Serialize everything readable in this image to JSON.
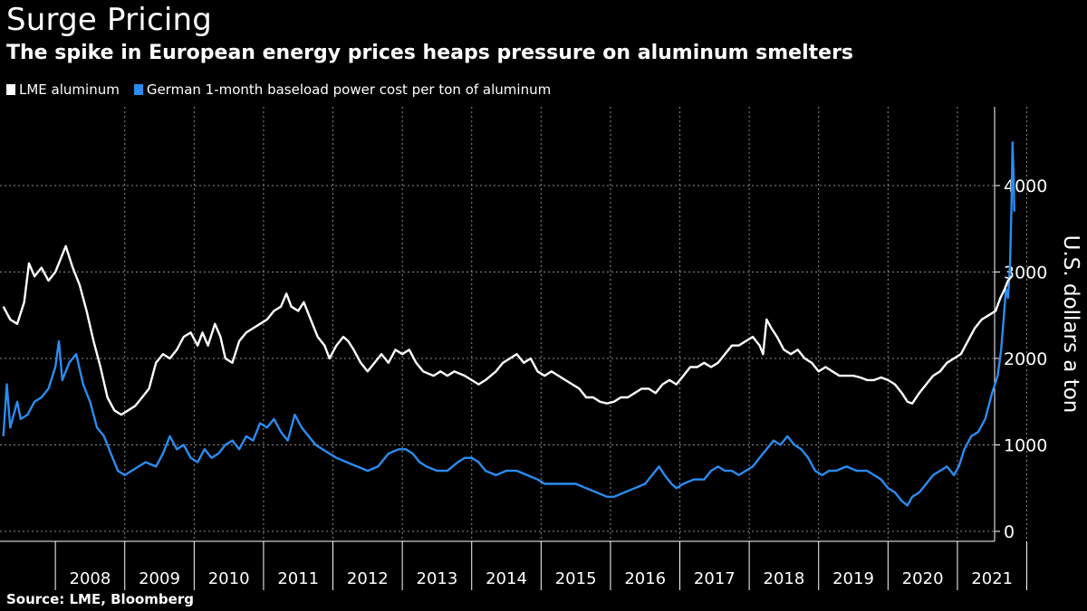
{
  "title": "Surge Pricing",
  "subtitle": "The spike in European energy prices heaps pressure on aluminum smelters",
  "source": "Source: LME, Bloomberg",
  "colors": {
    "aluminum": "#ffffff",
    "power": "#2a8cf0",
    "grid": "#8a8a8a",
    "background": "#000000"
  },
  "chart_data": {
    "type": "line",
    "ylabel": "U.S. dollars a ton",
    "ylim": [
      0,
      4600
    ],
    "yticks": [
      0,
      1000,
      2000,
      3000,
      4000
    ],
    "xlim": [
      2007.25,
      2021.95
    ],
    "years": [
      "2008",
      "2009",
      "2010",
      "2011",
      "2012",
      "2013",
      "2014",
      "2015",
      "2016",
      "2017",
      "2018",
      "2019",
      "2020",
      "2021"
    ],
    "grid": true,
    "legend_position": "top-left",
    "series": [
      {
        "name": "LME aluminum",
        "color": "#ffffff",
        "points": [
          [
            2007.25,
            2600
          ],
          [
            2007.35,
            2450
          ],
          [
            2007.45,
            2400
          ],
          [
            2007.55,
            2650
          ],
          [
            2007.62,
            3100
          ],
          [
            2007.7,
            2950
          ],
          [
            2007.8,
            3050
          ],
          [
            2007.9,
            2900
          ],
          [
            2008.0,
            3000
          ],
          [
            2008.1,
            3200
          ],
          [
            2008.15,
            3300
          ],
          [
            2008.25,
            3050
          ],
          [
            2008.35,
            2850
          ],
          [
            2008.45,
            2550
          ],
          [
            2008.55,
            2200
          ],
          [
            2008.65,
            1900
          ],
          [
            2008.75,
            1550
          ],
          [
            2008.85,
            1400
          ],
          [
            2008.95,
            1350
          ],
          [
            2009.05,
            1400
          ],
          [
            2009.15,
            1450
          ],
          [
            2009.25,
            1550
          ],
          [
            2009.35,
            1650
          ],
          [
            2009.45,
            1950
          ],
          [
            2009.55,
            2050
          ],
          [
            2009.65,
            2000
          ],
          [
            2009.75,
            2100
          ],
          [
            2009.85,
            2250
          ],
          [
            2009.95,
            2300
          ],
          [
            2010.05,
            2150
          ],
          [
            2010.12,
            2300
          ],
          [
            2010.2,
            2150
          ],
          [
            2010.3,
            2400
          ],
          [
            2010.38,
            2250
          ],
          [
            2010.45,
            2000
          ],
          [
            2010.55,
            1950
          ],
          [
            2010.65,
            2200
          ],
          [
            2010.75,
            2300
          ],
          [
            2010.85,
            2350
          ],
          [
            2010.95,
            2400
          ],
          [
            2011.05,
            2450
          ],
          [
            2011.15,
            2550
          ],
          [
            2011.25,
            2600
          ],
          [
            2011.33,
            2750
          ],
          [
            2011.4,
            2600
          ],
          [
            2011.5,
            2550
          ],
          [
            2011.58,
            2650
          ],
          [
            2011.68,
            2450
          ],
          [
            2011.78,
            2250
          ],
          [
            2011.88,
            2150
          ],
          [
            2011.95,
            2000
          ],
          [
            2012.05,
            2150
          ],
          [
            2012.15,
            2250
          ],
          [
            2012.22,
            2200
          ],
          [
            2012.3,
            2100
          ],
          [
            2012.4,
            1950
          ],
          [
            2012.5,
            1850
          ],
          [
            2012.6,
            1950
          ],
          [
            2012.7,
            2050
          ],
          [
            2012.8,
            1950
          ],
          [
            2012.9,
            2100
          ],
          [
            2013.0,
            2050
          ],
          [
            2013.1,
            2100
          ],
          [
            2013.2,
            1950
          ],
          [
            2013.3,
            1850
          ],
          [
            2013.45,
            1800
          ],
          [
            2013.55,
            1850
          ],
          [
            2013.65,
            1800
          ],
          [
            2013.75,
            1850
          ],
          [
            2013.9,
            1800
          ],
          [
            2014.0,
            1750
          ],
          [
            2014.1,
            1700
          ],
          [
            2014.2,
            1750
          ],
          [
            2014.35,
            1850
          ],
          [
            2014.45,
            1950
          ],
          [
            2014.55,
            2000
          ],
          [
            2014.65,
            2050
          ],
          [
            2014.75,
            1950
          ],
          [
            2014.85,
            2000
          ],
          [
            2014.95,
            1850
          ],
          [
            2015.05,
            1800
          ],
          [
            2015.15,
            1850
          ],
          [
            2015.25,
            1800
          ],
          [
            2015.35,
            1750
          ],
          [
            2015.45,
            1700
          ],
          [
            2015.55,
            1650
          ],
          [
            2015.65,
            1550
          ],
          [
            2015.75,
            1550
          ],
          [
            2015.85,
            1500
          ],
          [
            2015.95,
            1480
          ],
          [
            2016.05,
            1500
          ],
          [
            2016.15,
            1550
          ],
          [
            2016.25,
            1550
          ],
          [
            2016.35,
            1600
          ],
          [
            2016.45,
            1650
          ],
          [
            2016.55,
            1650
          ],
          [
            2016.65,
            1600
          ],
          [
            2016.75,
            1700
          ],
          [
            2016.85,
            1750
          ],
          [
            2016.95,
            1700
          ],
          [
            2017.05,
            1800
          ],
          [
            2017.15,
            1900
          ],
          [
            2017.25,
            1900
          ],
          [
            2017.35,
            1950
          ],
          [
            2017.45,
            1900
          ],
          [
            2017.55,
            1950
          ],
          [
            2017.65,
            2050
          ],
          [
            2017.75,
            2150
          ],
          [
            2017.85,
            2150
          ],
          [
            2017.95,
            2200
          ],
          [
            2018.05,
            2250
          ],
          [
            2018.15,
            2150
          ],
          [
            2018.2,
            2050
          ],
          [
            2018.25,
            2450
          ],
          [
            2018.32,
            2350
          ],
          [
            2018.4,
            2250
          ],
          [
            2018.5,
            2100
          ],
          [
            2018.6,
            2050
          ],
          [
            2018.7,
            2100
          ],
          [
            2018.8,
            2000
          ],
          [
            2018.9,
            1950
          ],
          [
            2019.0,
            1850
          ],
          [
            2019.1,
            1900
          ],
          [
            2019.2,
            1850
          ],
          [
            2019.3,
            1800
          ],
          [
            2019.4,
            1800
          ],
          [
            2019.5,
            1800
          ],
          [
            2019.6,
            1780
          ],
          [
            2019.7,
            1750
          ],
          [
            2019.8,
            1750
          ],
          [
            2019.9,
            1780
          ],
          [
            2020.0,
            1750
          ],
          [
            2020.1,
            1700
          ],
          [
            2020.2,
            1600
          ],
          [
            2020.28,
            1500
          ],
          [
            2020.35,
            1480
          ],
          [
            2020.45,
            1600
          ],
          [
            2020.55,
            1700
          ],
          [
            2020.65,
            1800
          ],
          [
            2020.75,
            1850
          ],
          [
            2020.85,
            1950
          ],
          [
            2020.95,
            2000
          ],
          [
            2021.05,
            2050
          ],
          [
            2021.15,
            2200
          ],
          [
            2021.25,
            2350
          ],
          [
            2021.35,
            2450
          ],
          [
            2021.45,
            2500
          ],
          [
            2021.55,
            2550
          ],
          [
            2021.62,
            2700
          ],
          [
            2021.68,
            2800
          ],
          [
            2021.73,
            2900
          ],
          [
            2021.78,
            2950
          ]
        ]
      },
      {
        "name": "German 1-month baseload power cost per ton of aluminum",
        "color": "#2a8cf0",
        "points": [
          [
            2007.25,
            1100
          ],
          [
            2007.3,
            1700
          ],
          [
            2007.35,
            1200
          ],
          [
            2007.45,
            1500
          ],
          [
            2007.5,
            1300
          ],
          [
            2007.6,
            1350
          ],
          [
            2007.7,
            1500
          ],
          [
            2007.8,
            1550
          ],
          [
            2007.9,
            1650
          ],
          [
            2008.0,
            1900
          ],
          [
            2008.05,
            2200
          ],
          [
            2008.1,
            1750
          ],
          [
            2008.2,
            1950
          ],
          [
            2008.3,
            2050
          ],
          [
            2008.4,
            1700
          ],
          [
            2008.5,
            1500
          ],
          [
            2008.6,
            1200
          ],
          [
            2008.7,
            1100
          ],
          [
            2008.8,
            900
          ],
          [
            2008.9,
            700
          ],
          [
            2009.0,
            650
          ],
          [
            2009.1,
            700
          ],
          [
            2009.2,
            750
          ],
          [
            2009.3,
            800
          ],
          [
            2009.45,
            750
          ],
          [
            2009.55,
            900
          ],
          [
            2009.65,
            1100
          ],
          [
            2009.75,
            950
          ],
          [
            2009.85,
            1000
          ],
          [
            2009.95,
            850
          ],
          [
            2010.05,
            800
          ],
          [
            2010.15,
            950
          ],
          [
            2010.25,
            850
          ],
          [
            2010.35,
            900
          ],
          [
            2010.45,
            1000
          ],
          [
            2010.55,
            1050
          ],
          [
            2010.65,
            950
          ],
          [
            2010.75,
            1100
          ],
          [
            2010.85,
            1050
          ],
          [
            2010.95,
            1250
          ],
          [
            2011.05,
            1200
          ],
          [
            2011.15,
            1300
          ],
          [
            2011.25,
            1150
          ],
          [
            2011.35,
            1050
          ],
          [
            2011.45,
            1350
          ],
          [
            2011.55,
            1200
          ],
          [
            2011.65,
            1100
          ],
          [
            2011.75,
            1000
          ],
          [
            2011.85,
            950
          ],
          [
            2011.95,
            900
          ],
          [
            2012.05,
            850
          ],
          [
            2012.2,
            800
          ],
          [
            2012.35,
            750
          ],
          [
            2012.5,
            700
          ],
          [
            2012.65,
            750
          ],
          [
            2012.8,
            900
          ],
          [
            2012.95,
            950
          ],
          [
            2013.05,
            950
          ],
          [
            2013.15,
            900
          ],
          [
            2013.25,
            800
          ],
          [
            2013.35,
            750
          ],
          [
            2013.5,
            700
          ],
          [
            2013.65,
            700
          ],
          [
            2013.8,
            800
          ],
          [
            2013.9,
            850
          ],
          [
            2014.0,
            850
          ],
          [
            2014.1,
            800
          ],
          [
            2014.2,
            700
          ],
          [
            2014.35,
            650
          ],
          [
            2014.5,
            700
          ],
          [
            2014.65,
            700
          ],
          [
            2014.8,
            650
          ],
          [
            2014.95,
            600
          ],
          [
            2015.05,
            550
          ],
          [
            2015.2,
            550
          ],
          [
            2015.35,
            550
          ],
          [
            2015.5,
            550
          ],
          [
            2015.65,
            500
          ],
          [
            2015.8,
            450
          ],
          [
            2015.95,
            400
          ],
          [
            2016.05,
            400
          ],
          [
            2016.2,
            450
          ],
          [
            2016.35,
            500
          ],
          [
            2016.5,
            550
          ],
          [
            2016.6,
            650
          ],
          [
            2016.7,
            750
          ],
          [
            2016.78,
            650
          ],
          [
            2016.88,
            550
          ],
          [
            2016.95,
            500
          ],
          [
            2017.05,
            550
          ],
          [
            2017.2,
            600
          ],
          [
            2017.35,
            600
          ],
          [
            2017.45,
            700
          ],
          [
            2017.55,
            750
          ],
          [
            2017.65,
            700
          ],
          [
            2017.75,
            700
          ],
          [
            2017.85,
            650
          ],
          [
            2017.95,
            700
          ],
          [
            2018.05,
            750
          ],
          [
            2018.15,
            850
          ],
          [
            2018.25,
            950
          ],
          [
            2018.35,
            1050
          ],
          [
            2018.45,
            1000
          ],
          [
            2018.55,
            1100
          ],
          [
            2018.65,
            1000
          ],
          [
            2018.75,
            950
          ],
          [
            2018.85,
            850
          ],
          [
            2018.95,
            700
          ],
          [
            2019.05,
            650
          ],
          [
            2019.15,
            700
          ],
          [
            2019.25,
            700
          ],
          [
            2019.4,
            750
          ],
          [
            2019.55,
            700
          ],
          [
            2019.7,
            700
          ],
          [
            2019.8,
            650
          ],
          [
            2019.9,
            600
          ],
          [
            2020.0,
            500
          ],
          [
            2020.1,
            450
          ],
          [
            2020.2,
            350
          ],
          [
            2020.28,
            300
          ],
          [
            2020.35,
            400
          ],
          [
            2020.45,
            450
          ],
          [
            2020.55,
            550
          ],
          [
            2020.65,
            650
          ],
          [
            2020.75,
            700
          ],
          [
            2020.85,
            750
          ],
          [
            2020.95,
            650
          ],
          [
            2021.02,
            750
          ],
          [
            2021.1,
            950
          ],
          [
            2021.2,
            1100
          ],
          [
            2021.3,
            1150
          ],
          [
            2021.4,
            1300
          ],
          [
            2021.5,
            1600
          ],
          [
            2021.58,
            1800
          ],
          [
            2021.63,
            2100
          ],
          [
            2021.67,
            2500
          ],
          [
            2021.7,
            2800
          ],
          [
            2021.73,
            2700
          ],
          [
            2021.76,
            3100
          ],
          [
            2021.78,
            3800
          ],
          [
            2021.795,
            4500
          ],
          [
            2021.81,
            4100
          ],
          [
            2021.82,
            3700
          ]
        ]
      }
    ]
  }
}
